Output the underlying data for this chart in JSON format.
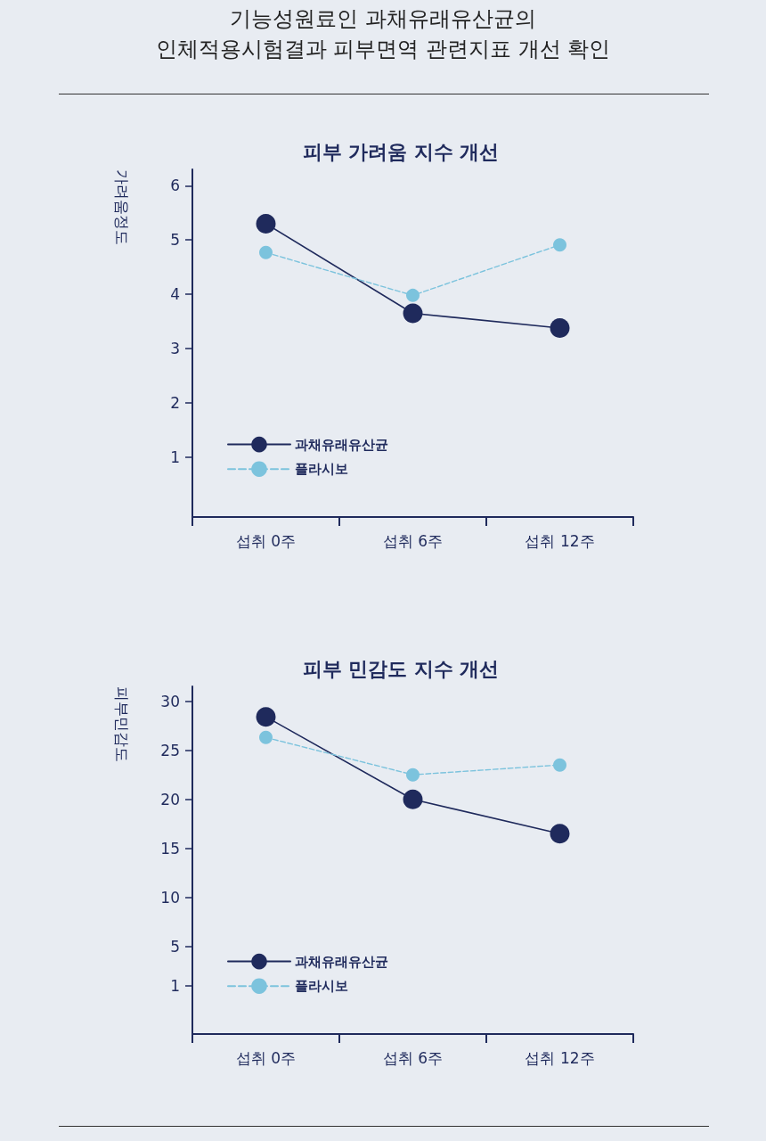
{
  "chart_data": [
    {
      "type": "line",
      "title": "피부 가려움 지수 개선",
      "ylabel": "가려움정도",
      "annotations": [
        "기능성원료인 과채유래유산균의\n인체적용시험결과 피부면역 관련지표 개선 확인"
      ],
      "categories": [
        "섭취 0주",
        "섭취 6주",
        "섭취 12주"
      ],
      "series": [
        {
          "name": "과채유래유산균",
          "color": "#1f2a5c",
          "values": [
            5.3,
            3.65,
            3.38
          ],
          "line_style": "solid"
        },
        {
          "name": "플라시보",
          "color": "#7cc3dd",
          "values": [
            4.77,
            3.98,
            4.91
          ],
          "line_style": "dashed"
        }
      ],
      "ylim": [
        -0.1,
        6.3
      ],
      "yticks": [
        1,
        2,
        3,
        4,
        5,
        6
      ],
      "marker": "circle",
      "grid": false,
      "legend": "bottom left"
    },
    {
      "type": "line",
      "title": "피부 민감도 지수 개선",
      "ylabel": "피부민감도",
      "categories": [
        "섭취 0주",
        "섭취 6주",
        "섭취 12주"
      ],
      "series": [
        {
          "name": "과채유래유산균",
          "color": "#1f2a5c",
          "values": [
            28.4,
            20,
            16.5
          ],
          "line_style": "solid"
        },
        {
          "name": "플라시보",
          "color": "#7cc3dd",
          "values": [
            26.3,
            22.5,
            23.5
          ],
          "line_style": "dashed"
        }
      ],
      "ylim": [
        -3.9,
        31.5
      ],
      "yticks": [
        1,
        5,
        10,
        15,
        20,
        25,
        30
      ],
      "marker": "circle",
      "grid": false,
      "legend": "bottom left"
    }
  ]
}
